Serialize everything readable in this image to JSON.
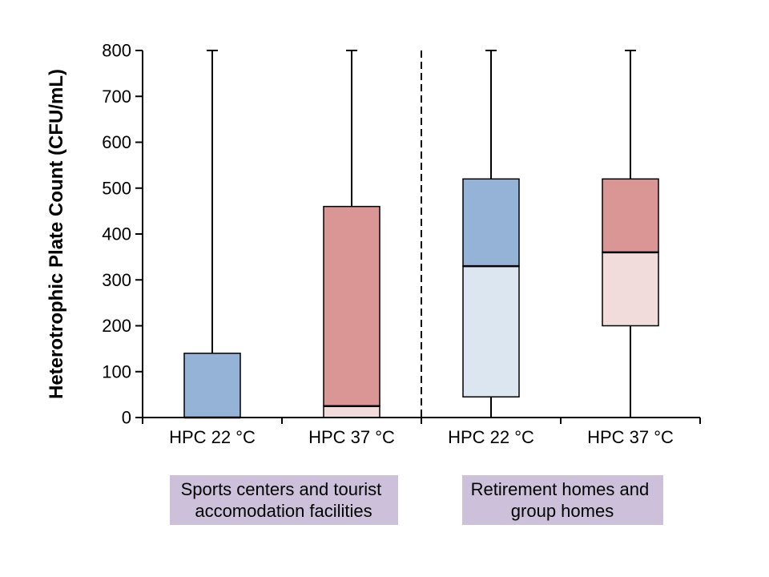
{
  "chart_data": {
    "type": "boxplot",
    "title": "",
    "ylabel": "Heterotrophic Plate Count (CFU/mL)",
    "xlabel": "",
    "ylim": [
      0,
      800
    ],
    "ytick_interval": 100,
    "yticks": [
      0,
      100,
      200,
      300,
      400,
      500,
      600,
      700,
      800
    ],
    "grid": false,
    "legend": false,
    "categories": [
      "HPC 22 °C",
      "HPC 37 °C",
      "HPC 22 °C",
      "HPC 37 °C"
    ],
    "series": [
      {
        "label": "HPC 22 °C",
        "group": 0,
        "palette": "blue",
        "whisker_low": 0,
        "q1": 0,
        "median": 0,
        "q3": 140,
        "whisker_high": 800
      },
      {
        "label": "HPC 37 °C",
        "group": 0,
        "palette": "red",
        "whisker_low": 0,
        "q1": 0,
        "median": 25,
        "q3": 460,
        "whisker_high": 800
      },
      {
        "label": "HPC 22 °C",
        "group": 1,
        "palette": "blue",
        "whisker_low": 0,
        "q1": 45,
        "median": 330,
        "q3": 520,
        "whisker_high": 800
      },
      {
        "label": "HPC 37 °C",
        "group": 1,
        "palette": "red",
        "whisker_low": 0,
        "q1": 200,
        "median": 360,
        "q3": 520,
        "whisker_high": 800
      }
    ],
    "groups": [
      {
        "label_lines": [
          "Sports centers and tourist",
          "accomodation facilities"
        ]
      },
      {
        "label_lines": [
          "Retirement homes and",
          "group homes"
        ]
      }
    ],
    "separator": {
      "style": "dashed",
      "between_categories": [
        1,
        2
      ]
    },
    "palettes": {
      "blue": {
        "upper": "#95B3D7",
        "lower": "#DCE6F1"
      },
      "red": {
        "upper": "#D99694",
        "lower": "#F2DCDB"
      }
    },
    "colors": {
      "box_border": "#000000",
      "median_line": "#000000",
      "whisker": "#000000",
      "axis": "#000000",
      "group_label_bg": "#CCC0DA",
      "text": "#000000",
      "background": "#FFFFFF"
    }
  }
}
